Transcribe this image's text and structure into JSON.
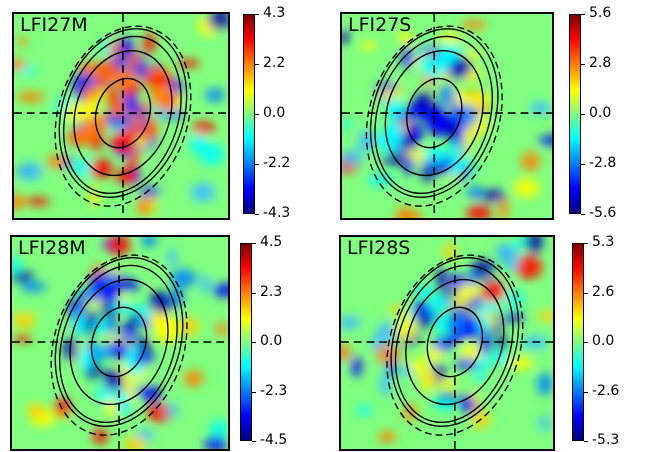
{
  "chart_data": [
    {
      "type": "heatmap",
      "title": "LFI27M",
      "colorbar": {
        "colormap": "jet",
        "ticks": [
          "4.3",
          "2.2",
          "0.0",
          "-2.2",
          "-4.3"
        ],
        "range": [
          -4.3,
          4.3
        ]
      },
      "overlay": "beam contours with dashed crosshair"
    },
    {
      "type": "heatmap",
      "title": "LFI27S",
      "colorbar": {
        "colormap": "jet",
        "ticks": [
          "5.6",
          "2.8",
          "0.0",
          "-2.8",
          "-5.6"
        ],
        "range": [
          -5.6,
          5.6
        ]
      },
      "overlay": "beam contours with dashed crosshair"
    },
    {
      "type": "heatmap",
      "title": "LFI28M",
      "colorbar": {
        "colormap": "jet",
        "ticks": [
          "4.5",
          "2.3",
          "0.0",
          "-2.3",
          "-4.5"
        ],
        "range": [
          -4.5,
          4.5
        ]
      },
      "overlay": "beam contours with dashed crosshair"
    },
    {
      "type": "heatmap",
      "title": "LFI28S",
      "colorbar": {
        "colormap": "jet",
        "ticks": [
          "5.3",
          "2.6",
          "0.0",
          "-2.6",
          "-5.3"
        ],
        "range": [
          -5.3,
          5.3
        ]
      },
      "overlay": "beam contours with dashed crosshair"
    }
  ]
}
